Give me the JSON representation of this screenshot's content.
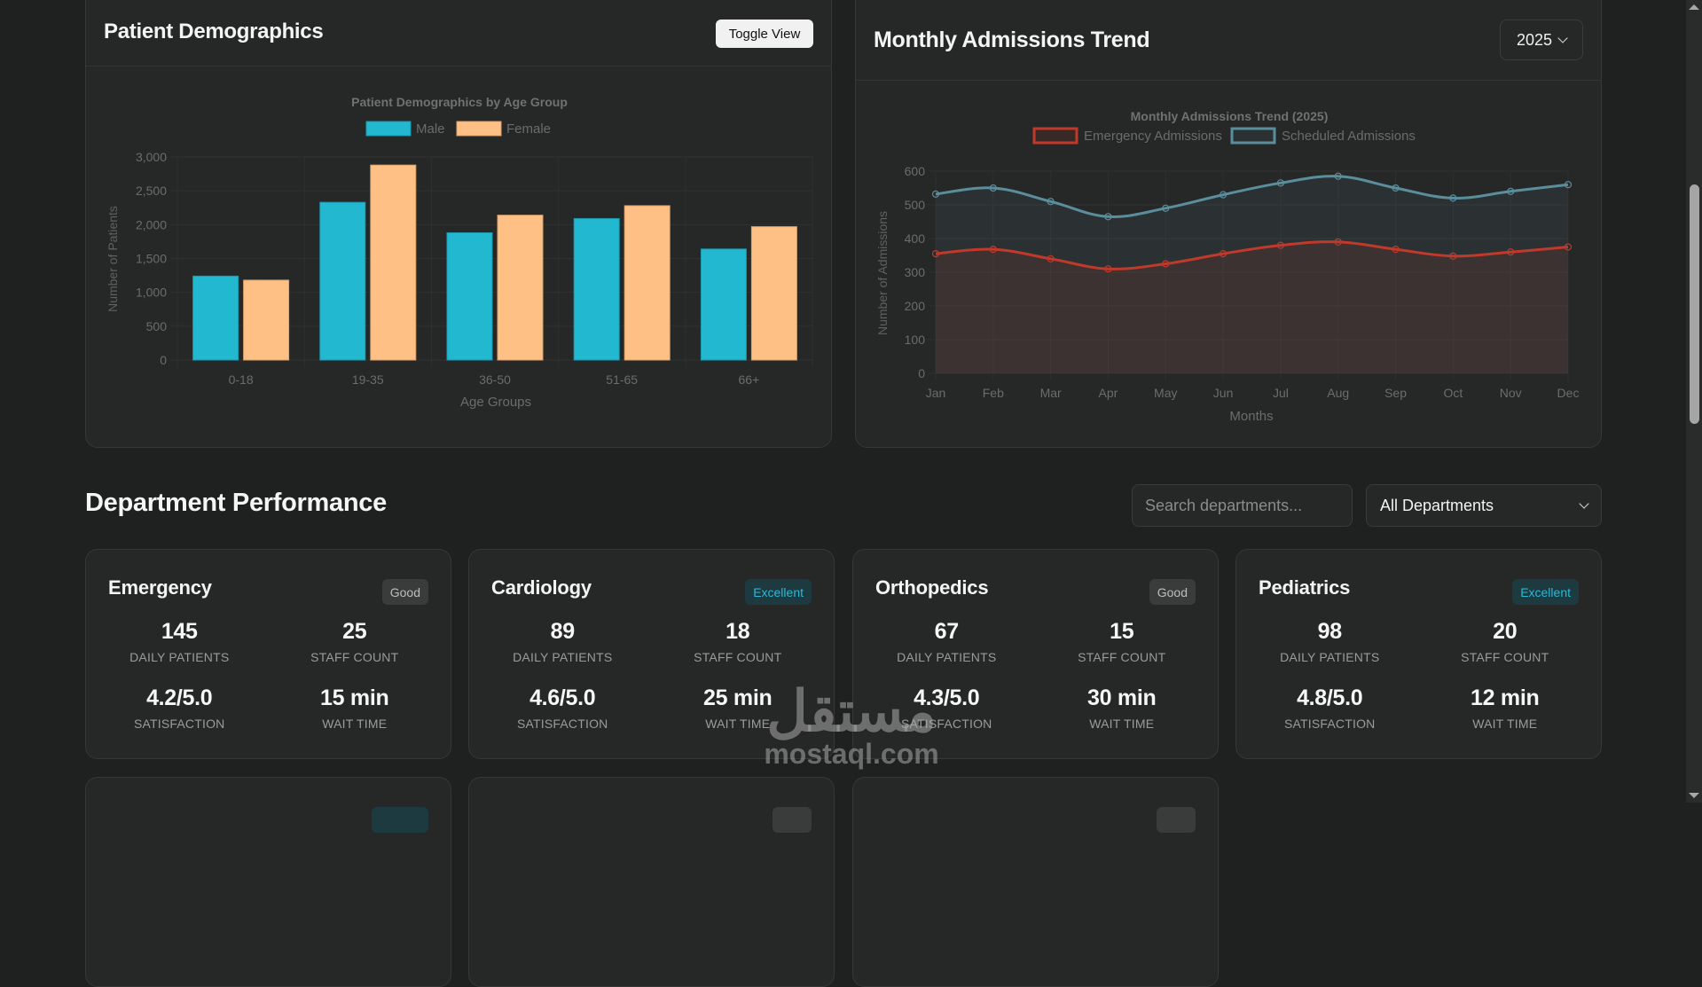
{
  "demographics": {
    "title": "Patient Demographics",
    "toggle_label": "Toggle View"
  },
  "trend": {
    "title": "Monthly Admissions Trend",
    "year_selected": "2025"
  },
  "chart_data": [
    {
      "type": "bar",
      "title": "Patient Demographics by Age Group",
      "xlabel": "Age Groups",
      "ylabel": "Number of Patients",
      "categories": [
        "0-18",
        "19-35",
        "36-50",
        "51-65",
        "66+"
      ],
      "series": [
        {
          "name": "Male",
          "color": "#22b8cf",
          "values": [
            1240,
            2330,
            1880,
            2090,
            1640
          ]
        },
        {
          "name": "Female",
          "color": "#ffc085",
          "values": [
            1180,
            2880,
            2140,
            2280,
            1970
          ]
        }
      ],
      "ylim": [
        0,
        3000
      ],
      "yticks": [
        0,
        500,
        1000,
        1500,
        2000,
        2500,
        3000
      ],
      "ytick_labels": [
        "0",
        "500",
        "1,000",
        "1,500",
        "2,000",
        "2,500",
        "3,000"
      ],
      "grid": true,
      "legend": "top-center"
    },
    {
      "type": "line",
      "title": "Monthly Admissions Trend (2025)",
      "xlabel": "Months",
      "ylabel": "Number of Admissions",
      "x": [
        "Jan",
        "Feb",
        "Mar",
        "Apr",
        "May",
        "Jun",
        "Jul",
        "Aug",
        "Sep",
        "Oct",
        "Nov",
        "Dec"
      ],
      "series": [
        {
          "name": "Emergency Admissions",
          "color": "#c0392b",
          "fill": true,
          "values": [
            355,
            368,
            340,
            310,
            325,
            355,
            380,
            390,
            368,
            348,
            360,
            375
          ]
        },
        {
          "name": "Scheduled Admissions",
          "color": "#5b8e9c",
          "fill": true,
          "values": [
            532,
            550,
            510,
            465,
            490,
            530,
            565,
            585,
            550,
            520,
            540,
            560
          ]
        }
      ],
      "ylim": [
        0,
        600
      ],
      "yticks": [
        0,
        100,
        200,
        300,
        400,
        500,
        600
      ],
      "grid": true,
      "legend": "top-center"
    }
  ],
  "departments": {
    "title": "Department Performance",
    "search_placeholder": "Search departments...",
    "filter_selected": "All Departments",
    "labels": {
      "daily_patients": "DAILY PATIENTS",
      "staff_count": "STAFF COUNT",
      "satisfaction": "SATISFACTION",
      "wait_time": "WAIT TIME"
    },
    "cards": [
      {
        "name": "Emergency",
        "status": "Good",
        "daily_patients": "145",
        "staff_count": "25",
        "satisfaction": "4.2/5.0",
        "wait_time": "15 min"
      },
      {
        "name": "Cardiology",
        "status": "Excellent",
        "daily_patients": "89",
        "staff_count": "18",
        "satisfaction": "4.6/5.0",
        "wait_time": "25 min"
      },
      {
        "name": "Orthopedics",
        "status": "Good",
        "daily_patients": "67",
        "staff_count": "15",
        "satisfaction": "4.3/5.0",
        "wait_time": "30 min"
      },
      {
        "name": "Pediatrics",
        "status": "Excellent",
        "daily_patients": "98",
        "staff_count": "20",
        "satisfaction": "4.8/5.0",
        "wait_time": "12 min"
      }
    ]
  },
  "watermark": {
    "arabic": "مستقل",
    "latin": "mostaql.com"
  }
}
